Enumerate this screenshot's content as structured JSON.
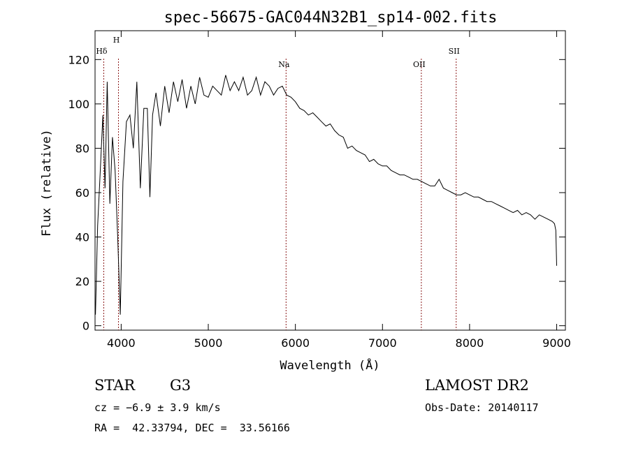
{
  "chart_data": {
    "type": "line",
    "title": "spec-56675-GAC044N32B1_sp14-002.fits",
    "xlabel": "Wavelength (Å)",
    "ylabel": "Flux (relative)",
    "xlim": [
      3700,
      9100
    ],
    "ylim": [
      -2,
      133
    ],
    "xticks": [
      4000,
      5000,
      6000,
      7000,
      8000,
      9000
    ],
    "yticks": [
      0,
      20,
      40,
      60,
      80,
      100,
      120
    ],
    "grid": false,
    "line_color": "#000000",
    "marker_color": "#8b1a1a",
    "series": [
      {
        "x": [
          3705,
          3730,
          3760,
          3790,
          3815,
          3840,
          3870,
          3900,
          3930,
          3960,
          3990,
          4020,
          4060,
          4100,
          4140,
          4180,
          4220,
          4260,
          4300,
          4330,
          4360,
          4400,
          4450,
          4500,
          4550,
          4600,
          4650,
          4700,
          4750,
          4800,
          4850,
          4900,
          4950,
          5000,
          5050,
          5100,
          5150,
          5200,
          5250,
          5300,
          5350,
          5400,
          5450,
          5500,
          5550,
          5600,
          5650,
          5700,
          5750,
          5800,
          5850,
          5900,
          5950,
          6000,
          6050,
          6100,
          6150,
          6200,
          6250,
          6300,
          6350,
          6400,
          6450,
          6500,
          6550,
          6600,
          6650,
          6700,
          6750,
          6800,
          6850,
          6900,
          6950,
          7000,
          7050,
          7100,
          7150,
          7200,
          7250,
          7300,
          7350,
          7400,
          7450,
          7500,
          7550,
          7600,
          7650,
          7700,
          7750,
          7800,
          7850,
          7900,
          7950,
          8000,
          8050,
          8100,
          8150,
          8200,
          8250,
          8300,
          8350,
          8400,
          8450,
          8500,
          8550,
          8600,
          8650,
          8700,
          8750,
          8800,
          8850,
          8900,
          8950,
          8975,
          8990,
          9000
        ],
        "y": [
          5,
          45,
          70,
          95,
          62,
          110,
          55,
          85,
          70,
          40,
          5,
          65,
          92,
          95,
          80,
          110,
          62,
          98,
          98,
          58,
          95,
          105,
          90,
          108,
          96,
          110,
          101,
          111,
          98,
          108,
          100,
          112,
          104,
          103,
          108,
          106,
          104,
          113,
          106,
          110,
          106,
          112,
          104,
          106,
          112,
          104,
          110,
          108,
          104,
          107,
          108,
          104,
          103,
          101,
          98,
          97,
          95,
          96,
          94,
          92,
          90,
          91,
          88,
          86,
          85,
          80,
          81,
          79,
          78,
          77,
          74,
          75,
          73,
          72,
          72,
          70,
          69,
          68,
          68,
          67,
          66,
          66,
          65,
          64,
          63,
          63,
          66,
          62,
          61,
          60,
          59,
          59,
          60,
          59,
          58,
          58,
          57,
          56,
          56,
          55,
          54,
          53,
          52,
          51,
          52,
          50,
          51,
          50,
          48,
          50,
          49,
          48,
          47,
          46,
          43,
          27
        ]
      }
    ],
    "line_markers": [
      {
        "label": "Hδ",
        "x": 3800
      },
      {
        "label": "H",
        "x": 3969
      },
      {
        "label": "Na",
        "x": 5893
      },
      {
        "label": "OII",
        "x": 7446
      },
      {
        "label": "SII",
        "x": 7846
      }
    ]
  },
  "info": {
    "object_class": "STAR",
    "subclass": "G3",
    "survey": "LAMOST DR2",
    "redshift": "cz = −6.9 ± 3.9 km/s",
    "obs_date": "Obs-Date: 20140117",
    "coords": "RA =  42.33794, DEC =  33.56166"
  }
}
